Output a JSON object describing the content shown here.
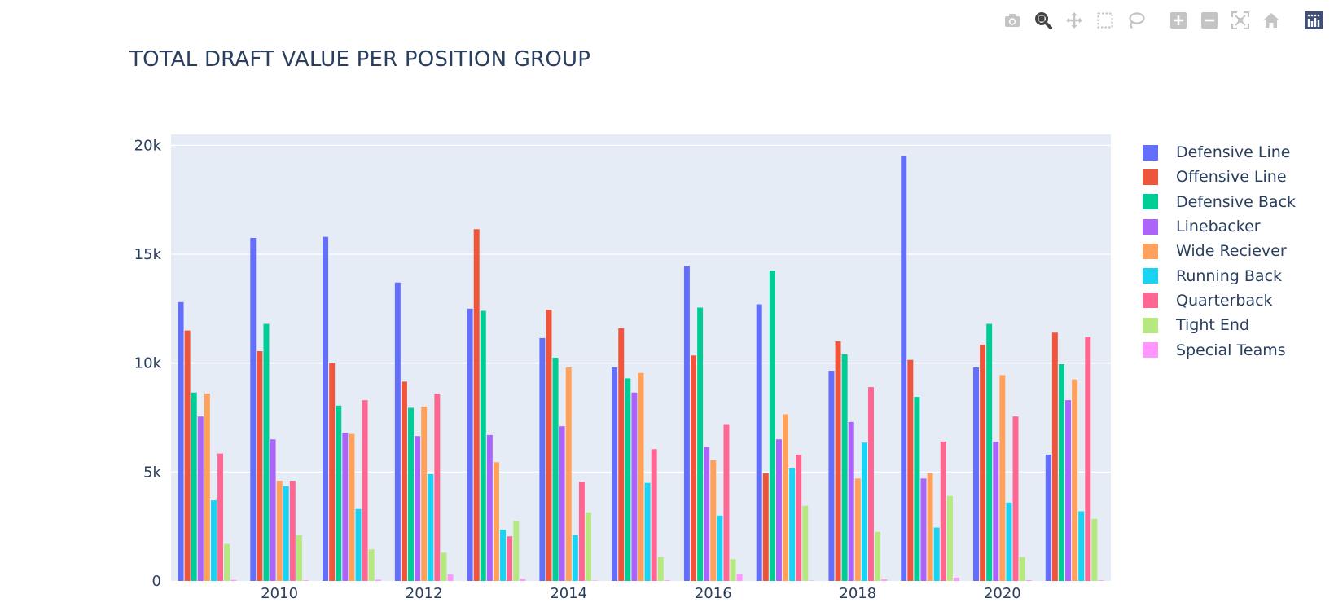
{
  "toolbar": {
    "buttons": [
      {
        "name": "camera-icon",
        "tip": "Download plot as a png",
        "active": false
      },
      {
        "name": "zoom-icon",
        "tip": "Zoom",
        "active": true
      },
      {
        "name": "pan-icon",
        "tip": "Pan",
        "active": false
      },
      {
        "name": "box-select-icon",
        "tip": "Box Select",
        "active": false
      },
      {
        "name": "lasso-select-icon",
        "tip": "Lasso Select",
        "active": false
      },
      {
        "name": "zoom-in-icon",
        "tip": "Zoom in",
        "active": false
      },
      {
        "name": "zoom-out-icon",
        "tip": "Zoom out",
        "active": false
      },
      {
        "name": "autoscale-icon",
        "tip": "Autoscale",
        "active": false
      },
      {
        "name": "home-icon",
        "tip": "Reset axes",
        "active": false
      },
      {
        "name": "plotly-logo-icon",
        "tip": "Produced with Plotly",
        "active": false
      }
    ]
  },
  "colors": {
    "plot_bg": "#e5ecf6",
    "grid": "#ffffff",
    "text": "#2a3f5f",
    "toolbar_icon": "#c4c4c4",
    "toolbar_active": "#444444",
    "logo_bg": "#3f4f75"
  },
  "chart_data": {
    "type": "bar",
    "title": "TOTAL DRAFT VALUE PER POSITION GROUP",
    "xlabel": "",
    "ylabel": "",
    "x": [
      2009,
      2010,
      2011,
      2012,
      2013,
      2014,
      2015,
      2016,
      2017,
      2018,
      2019,
      2020,
      2021
    ],
    "x_tick_labels": [
      "2010",
      "2012",
      "2014",
      "2016",
      "2018",
      "2020"
    ],
    "x_tick_values": [
      2010,
      2012,
      2014,
      2016,
      2018,
      2020
    ],
    "xlim": [
      2008.5,
      2021.5
    ],
    "ylim": [
      0,
      20500
    ],
    "y_tick_values": [
      0,
      5000,
      10000,
      15000,
      20000
    ],
    "y_tick_labels": [
      "0",
      "5k",
      "10k",
      "15k",
      "20k"
    ],
    "grid": true,
    "legend_position": "right",
    "series": [
      {
        "name": "Defensive Line",
        "color": "#636efa",
        "values": [
          12800,
          15750,
          15800,
          13700,
          12500,
          11150,
          9800,
          14450,
          12700,
          9650,
          19500,
          9800,
          5800
        ]
      },
      {
        "name": "Offensive Line",
        "color": "#ef553b",
        "values": [
          11500,
          10550,
          10000,
          9150,
          16150,
          12450,
          11600,
          10350,
          4950,
          11000,
          10150,
          10850,
          11400
        ]
      },
      {
        "name": "Defensive Back",
        "color": "#00cc96",
        "values": [
          8650,
          11800,
          8050,
          7950,
          12400,
          10250,
          9300,
          12550,
          14250,
          10400,
          8450,
          11800,
          9950
        ]
      },
      {
        "name": "Linebacker",
        "color": "#ab63fa",
        "values": [
          7550,
          6500,
          6800,
          6650,
          6700,
          7100,
          8650,
          6150,
          6500,
          7300,
          4700,
          6400,
          8300
        ]
      },
      {
        "name": "Wide Reciever",
        "color": "#ffa15a",
        "values": [
          8600,
          4600,
          6750,
          8000,
          5450,
          9800,
          9550,
          5550,
          7650,
          4700,
          4950,
          9450,
          9250
        ]
      },
      {
        "name": "Running Back",
        "color": "#19d3f3",
        "values": [
          3700,
          4350,
          3300,
          4900,
          2350,
          2100,
          4500,
          3000,
          5200,
          6350,
          2450,
          3600,
          3200
        ]
      },
      {
        "name": "Quarterback",
        "color": "#ff6692",
        "values": [
          5850,
          4600,
          8300,
          8600,
          2050,
          4550,
          6050,
          7200,
          5800,
          8900,
          6400,
          7550,
          11200
        ]
      },
      {
        "name": "Tight End",
        "color": "#b6e880",
        "values": [
          1700,
          2100,
          1450,
          1300,
          2750,
          3150,
          1100,
          1000,
          3450,
          2250,
          3900,
          1100,
          2850
        ]
      },
      {
        "name": "Special Teams",
        "color": "#ff97ff",
        "values": [
          50,
          30,
          60,
          300,
          100,
          20,
          30,
          320,
          20,
          80,
          150,
          40,
          30
        ]
      }
    ]
  }
}
